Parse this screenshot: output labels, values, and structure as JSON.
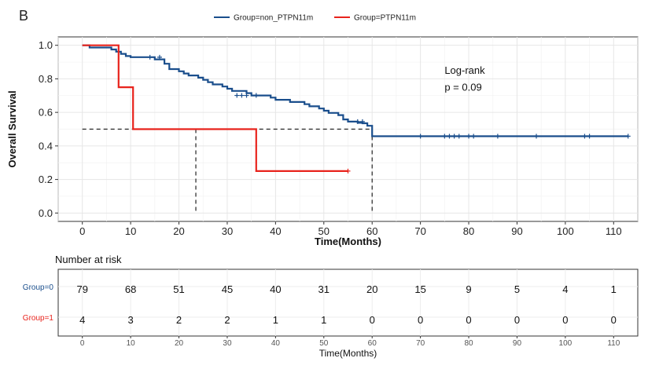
{
  "panel_label": "B",
  "chart_data": {
    "type": "line",
    "subtype": "kaplan-meier",
    "xlabel": "Time(Months)",
    "ylabel": "Overall Survival",
    "xlim": [
      -5,
      115
    ],
    "ylim": [
      -0.05,
      1.05
    ],
    "xticks": [
      0,
      10,
      20,
      30,
      40,
      50,
      60,
      70,
      80,
      90,
      100,
      110
    ],
    "yticks": [
      "0.0",
      "0.2",
      "0.4",
      "0.6",
      "0.8",
      "1.0"
    ],
    "legend": {
      "position": "top",
      "entries": [
        {
          "label": "Group=non_PTPN11m",
          "color": "#1a4e8c"
        },
        {
          "label": "Group=PTPN11m",
          "color": "#e8231c"
        }
      ]
    },
    "annotation": {
      "line1": "Log-rank",
      "line2": "p = 0.09",
      "x": 75,
      "y": [
        0.83,
        0.73
      ]
    },
    "median_line": {
      "y": 0.5,
      "x_end": 60,
      "drops": [
        23.5,
        60
      ]
    },
    "series": [
      {
        "name": "Group=non_PTPN11m",
        "color": "#1a4e8c",
        "steps": [
          [
            0,
            1.0
          ],
          [
            1.5,
            0.987
          ],
          [
            5.5,
            0.987
          ],
          [
            6,
            0.975
          ],
          [
            7,
            0.962
          ],
          [
            8,
            0.949
          ],
          [
            9,
            0.936
          ],
          [
            10,
            0.929
          ],
          [
            14,
            0.929
          ],
          [
            15,
            0.916
          ],
          [
            17,
            0.89
          ],
          [
            18,
            0.858
          ],
          [
            20,
            0.845
          ],
          [
            21,
            0.832
          ],
          [
            22,
            0.82
          ],
          [
            24,
            0.807
          ],
          [
            25,
            0.794
          ],
          [
            26,
            0.78
          ],
          [
            27,
            0.767
          ],
          [
            29,
            0.754
          ],
          [
            30,
            0.741
          ],
          [
            31,
            0.728
          ],
          [
            34,
            0.715
          ],
          [
            35,
            0.701
          ],
          [
            38,
            0.701
          ],
          [
            39,
            0.688
          ],
          [
            40,
            0.675
          ],
          [
            43,
            0.662
          ],
          [
            46,
            0.649
          ],
          [
            47,
            0.636
          ],
          [
            49,
            0.623
          ],
          [
            50,
            0.61
          ],
          [
            51,
            0.597
          ],
          [
            53,
            0.584
          ],
          [
            54,
            0.558
          ],
          [
            55,
            0.545
          ],
          [
            57,
            0.538
          ],
          [
            58,
            0.535
          ],
          [
            59,
            0.52
          ],
          [
            60,
            0.458
          ],
          [
            113,
            0.458
          ]
        ],
        "censor": [
          [
            14,
            0.929
          ],
          [
            16,
            0.929
          ],
          [
            32,
            0.701
          ],
          [
            33,
            0.701
          ],
          [
            34,
            0.701
          ],
          [
            36,
            0.701
          ],
          [
            57,
            0.545
          ],
          [
            58,
            0.545
          ],
          [
            70,
            0.458
          ],
          [
            75,
            0.458
          ],
          [
            76,
            0.458
          ],
          [
            77,
            0.458
          ],
          [
            78,
            0.458
          ],
          [
            80,
            0.458
          ],
          [
            81,
            0.458
          ],
          [
            86,
            0.458
          ],
          [
            94,
            0.458
          ],
          [
            104,
            0.458
          ],
          [
            105,
            0.458
          ],
          [
            113,
            0.458
          ]
        ]
      },
      {
        "name": "Group=PTPN11m",
        "color": "#e8231c",
        "steps": [
          [
            0,
            1.0
          ],
          [
            7.5,
            1.0
          ],
          [
            7.5,
            0.75
          ],
          [
            10.5,
            0.75
          ],
          [
            10.5,
            0.5
          ],
          [
            36,
            0.5
          ],
          [
            36,
            0.25
          ],
          [
            55,
            0.25
          ]
        ],
        "censor": [
          [
            55,
            0.25
          ]
        ]
      }
    ]
  },
  "risk_table": {
    "title": "Number at risk",
    "xlabel": "Time(Months)",
    "xticks": [
      "0",
      "10",
      "20",
      "30",
      "40",
      "50",
      "60",
      "70",
      "80",
      "90",
      "100",
      "110"
    ],
    "rows": [
      {
        "label": "Group=0",
        "color": "#1a4e8c",
        "values": [
          "79",
          "68",
          "51",
          "45",
          "40",
          "31",
          "20",
          "15",
          "9",
          "5",
          "4",
          "1"
        ]
      },
      {
        "label": "Group=1",
        "color": "#e8231c",
        "values": [
          "4",
          "3",
          "2",
          "2",
          "1",
          "1",
          "0",
          "0",
          "0",
          "0",
          "0",
          "0"
        ]
      }
    ]
  }
}
